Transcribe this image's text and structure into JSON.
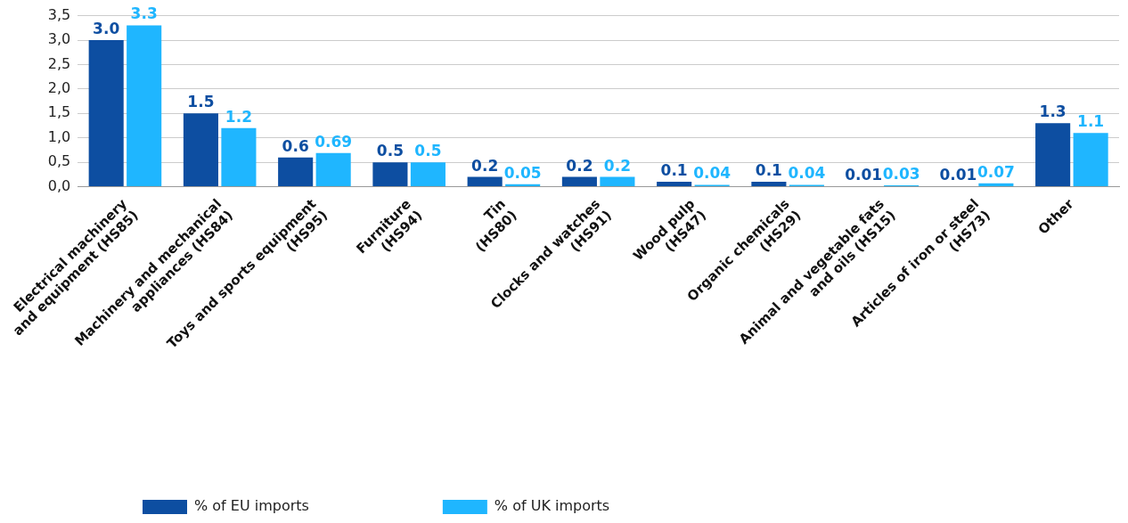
{
  "chart_data": {
    "type": "bar",
    "categories": [
      "Electrical machinery\nand equipment (HS85)",
      "Machinery and mechanical\nappliances (HS84)",
      "Toys and sports equipment\n(HS95)",
      "Furniture\n(HS94)",
      "Tin\n(HS80)",
      "Clocks and watches\n(HS91)",
      "Wood pulp\n(HS47)",
      "Organic chemicals\n(HS29)",
      "Animal and vegetable fats\nand oils (HS15)",
      "Articles of iron or steel\n(HS73)",
      "Other"
    ],
    "series": [
      {
        "name": "% of EU imports",
        "color": "#0d4ea1",
        "values": [
          3.0,
          1.5,
          0.6,
          0.5,
          0.2,
          0.2,
          0.1,
          0.1,
          0.01,
          0.01,
          1.3
        ],
        "value_labels": [
          "3.0",
          "1.5",
          "0.6",
          "0.5",
          "0.2",
          "0.2",
          "0.1",
          "0.1",
          "0.01",
          "0.01",
          "1.3"
        ]
      },
      {
        "name": "% of UK imports",
        "color": "#1fb6ff",
        "values": [
          3.3,
          1.2,
          0.69,
          0.5,
          0.05,
          0.2,
          0.04,
          0.04,
          0.03,
          0.07,
          1.1
        ],
        "value_labels": [
          "3.3",
          "1.2",
          "0.69",
          "0.5",
          "0.05",
          "0.2",
          "0.04",
          "0.04",
          "0.03",
          "0.07",
          "1.1"
        ]
      }
    ],
    "ylim": [
      0,
      3.5
    ],
    "yticks": [
      {
        "value": 0,
        "label": "0,0"
      },
      {
        "value": 0.5,
        "label": "0,5"
      },
      {
        "value": 1,
        "label": "1,0"
      },
      {
        "value": 1.5,
        "label": "1,5"
      },
      {
        "value": 2,
        "label": "2,0"
      },
      {
        "value": 2.5,
        "label": "2,5"
      },
      {
        "value": 3,
        "label": "3,0"
      },
      {
        "value": 3.5,
        "label": "3,5"
      }
    ],
    "grid": "y",
    "legend": "bottom left"
  }
}
